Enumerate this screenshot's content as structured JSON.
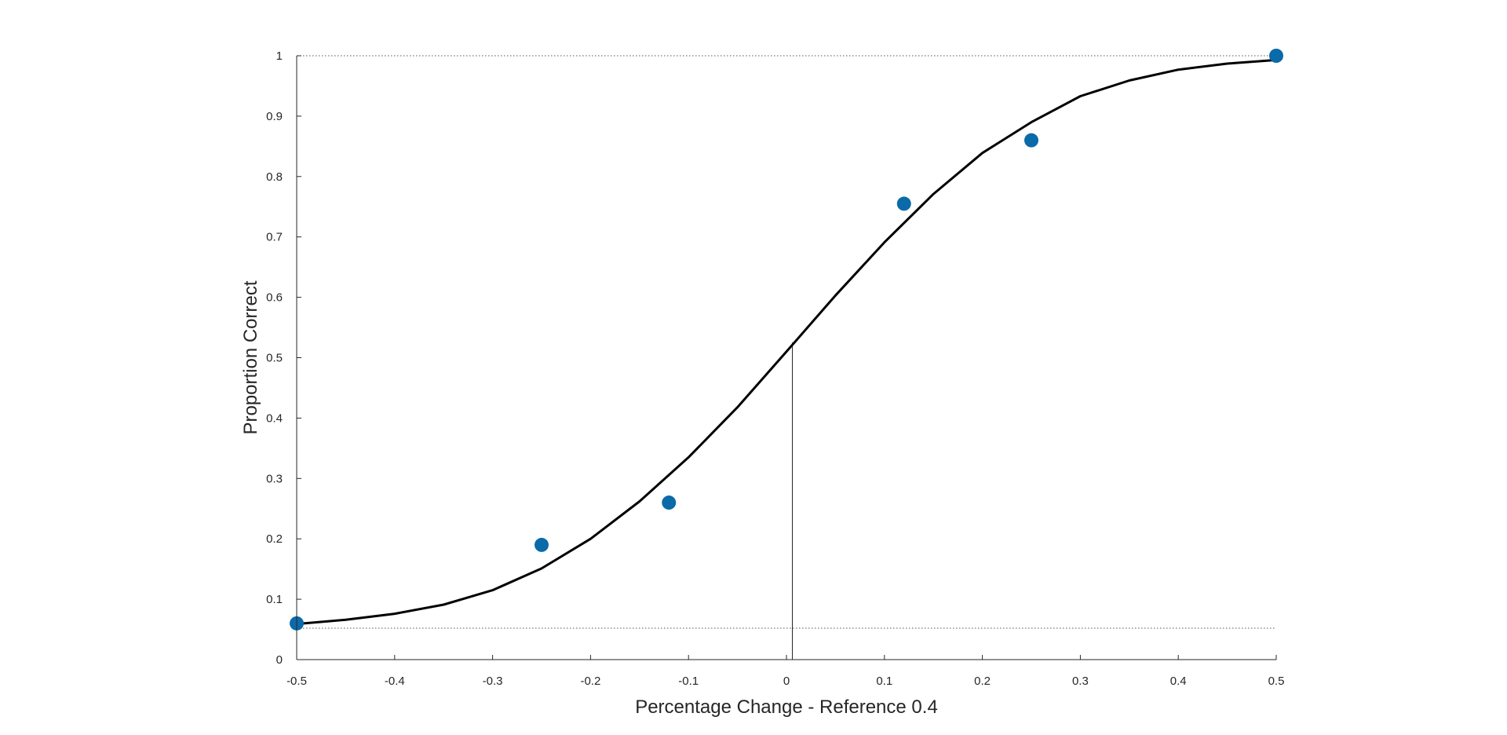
{
  "chart_data": {
    "type": "scatter",
    "xlabel": "Percentage Change - Reference 0.4",
    "ylabel": "Proportion Correct",
    "xlim": [
      -0.5,
      0.5
    ],
    "ylim": [
      0,
      1
    ],
    "xticks": [
      "-0.5",
      "-0.4",
      "-0.3",
      "-0.2",
      "-0.1",
      "0",
      "0.1",
      "0.2",
      "0.3",
      "0.4",
      "0.5"
    ],
    "yticks": [
      "0",
      "0.1",
      "0.2",
      "0.3",
      "0.4",
      "0.5",
      "0.6",
      "0.7",
      "0.8",
      "0.9",
      "1"
    ],
    "grid": false,
    "legend": "none",
    "series": [
      {
        "kind": "points",
        "color": "#0b6aa8",
        "x": [
          -0.5,
          -0.25,
          -0.12,
          0.12,
          0.25,
          0.5
        ],
        "y": [
          0.06,
          0.19,
          0.26,
          0.755,
          0.86,
          1.0
        ]
      },
      {
        "kind": "fit-curve",
        "color": "#000000",
        "x": [
          -0.5,
          -0.45,
          -0.4,
          -0.35,
          -0.3,
          -0.25,
          -0.2,
          -0.15,
          -0.1,
          -0.05,
          0.0,
          0.05,
          0.1,
          0.15,
          0.2,
          0.25,
          0.3,
          0.35,
          0.4,
          0.45,
          0.5
        ],
        "y": [
          0.059,
          0.066,
          0.076,
          0.091,
          0.115,
          0.151,
          0.2,
          0.262,
          0.335,
          0.418,
          0.51,
          0.603,
          0.691,
          0.771,
          0.839,
          0.89,
          0.933,
          0.959,
          0.977,
          0.987,
          0.993
        ]
      }
    ],
    "reference_lines": {
      "lower_asymptote_y": 0.052,
      "upper_asymptote_y": 1.0,
      "threshold_x": 0.006,
      "threshold_y": 0.525
    }
  }
}
